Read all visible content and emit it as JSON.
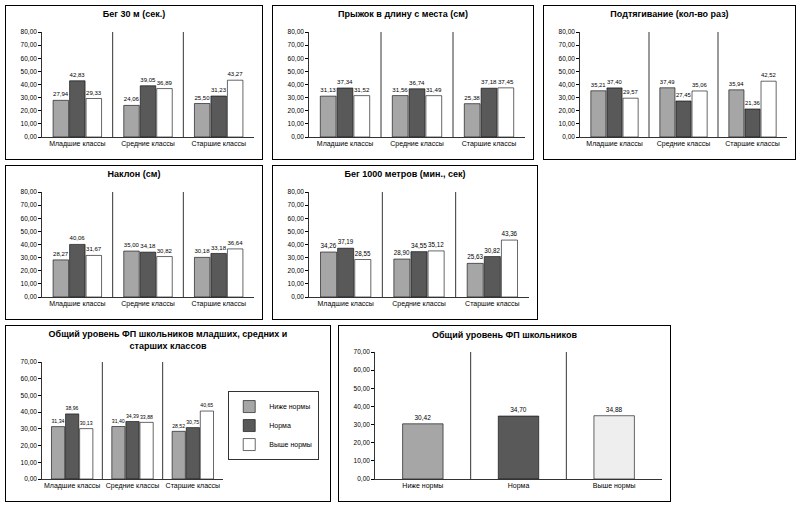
{
  "chart_data": [
    {
      "type": "bar",
      "title": "Бег 30 м (сек.)",
      "categories": [
        "Младшие классы",
        "Средние классы",
        "Старшие классы"
      ],
      "series": [
        {
          "color": "#a6a6a6",
          "values": [
            27.94,
            24.06,
            25.5
          ],
          "value_labels": [
            "27,94",
            "24,06",
            "25,50"
          ]
        },
        {
          "color": "#595959",
          "values": [
            42.83,
            39.05,
            31.23
          ],
          "value_labels": [
            "42,83",
            "39,05",
            "31,23"
          ]
        },
        {
          "color": "#ffffff",
          "values": [
            29.33,
            36.89,
            43.27
          ],
          "value_labels": [
            "29,33",
            "36,89",
            "43,27"
          ]
        }
      ],
      "ylim": [
        0,
        80
      ],
      "yticks": [
        {
          "value": 0,
          "label": "0,00"
        },
        {
          "value": 10,
          "label": "10,00"
        },
        {
          "value": 20,
          "label": "20,00"
        },
        {
          "value": 30,
          "label": "30,00"
        },
        {
          "value": 40,
          "label": "40,00"
        },
        {
          "value": 50,
          "label": "50,00"
        },
        {
          "value": 60,
          "label": "60,00"
        },
        {
          "value": 70,
          "label": "70,00"
        },
        {
          "value": 80,
          "label": "80,00"
        }
      ],
      "data_labels": true,
      "grid": false
    },
    {
      "type": "bar",
      "title": "Прыжок в длину с места (см)",
      "categories": [
        "Младшие классы",
        "Средние классы",
        "Старшие классы"
      ],
      "series": [
        {
          "color": "#a6a6a6",
          "values": [
            31.13,
            31.56,
            25.38
          ],
          "value_labels": [
            "31,13",
            "31,56",
            "25,38"
          ]
        },
        {
          "color": "#595959",
          "values": [
            37.34,
            36.74,
            37.18
          ],
          "value_labels": [
            "37,34",
            "36,74",
            "37,18"
          ]
        },
        {
          "color": "#ffffff",
          "values": [
            31.52,
            31.49,
            37.45
          ],
          "value_labels": [
            "31,52",
            "31,49",
            "37,45"
          ]
        }
      ],
      "ylim": [
        0,
        80
      ],
      "yticks": [
        {
          "value": 0,
          "label": "0,00"
        },
        {
          "value": 10,
          "label": "10,00"
        },
        {
          "value": 20,
          "label": "20,00"
        },
        {
          "value": 30,
          "label": "30,00"
        },
        {
          "value": 40,
          "label": "40,00"
        },
        {
          "value": 50,
          "label": "50,00"
        },
        {
          "value": 60,
          "label": "60,00"
        },
        {
          "value": 70,
          "label": "70,00"
        },
        {
          "value": 80,
          "label": "80,00"
        }
      ],
      "data_labels": true,
      "grid": false
    },
    {
      "type": "bar",
      "title": "Подтягивание (кол-во раз)",
      "categories": [
        "Младшие классы",
        "Средние классы",
        "Старшие классы"
      ],
      "series": [
        {
          "color": "#a6a6a6",
          "values": [
            35.21,
            37.49,
            35.94
          ],
          "value_labels": [
            "35,21",
            "37,49",
            "35,94"
          ]
        },
        {
          "color": "#595959",
          "values": [
            37.4,
            27.45,
            21.36
          ],
          "value_labels": [
            "37,40",
            "27,45",
            "21,36"
          ]
        },
        {
          "color": "#ffffff",
          "values": [
            29.57,
            35.06,
            42.52
          ],
          "value_labels": [
            "29,57",
            "35,06",
            "42,52"
          ]
        }
      ],
      "ylim": [
        0,
        80
      ],
      "yticks": [
        {
          "value": 0,
          "label": "0,00"
        },
        {
          "value": 10,
          "label": "10,00"
        },
        {
          "value": 20,
          "label": "20,00"
        },
        {
          "value": 30,
          "label": "30,00"
        },
        {
          "value": 40,
          "label": "40,00"
        },
        {
          "value": 50,
          "label": "50,00"
        },
        {
          "value": 60,
          "label": "60,00"
        },
        {
          "value": 70,
          "label": "70,00"
        },
        {
          "value": 80,
          "label": "80,00"
        }
      ],
      "data_labels": true,
      "grid": false
    },
    {
      "type": "bar",
      "title": "Наклон (см)",
      "categories": [
        "Младшие классы",
        "Средние классы",
        "Старшие классы"
      ],
      "series": [
        {
          "color": "#a6a6a6",
          "values": [
            28.27,
            35.0,
            30.18
          ],
          "value_labels": [
            "28,27",
            "35,00",
            "30,18"
          ]
        },
        {
          "color": "#595959",
          "values": [
            40.06,
            34.18,
            33.18
          ],
          "value_labels": [
            "40,06",
            "34,18",
            "33,18"
          ]
        },
        {
          "color": "#ffffff",
          "values": [
            31.67,
            30.82,
            36.64
          ],
          "value_labels": [
            "31,67",
            "30,82",
            "36,64"
          ]
        }
      ],
      "ylim": [
        0,
        80
      ],
      "yticks": [
        {
          "value": 0,
          "label": "0,00"
        },
        {
          "value": 10,
          "label": "10,00"
        },
        {
          "value": 20,
          "label": "20,00"
        },
        {
          "value": 30,
          "label": "30,00"
        },
        {
          "value": 40,
          "label": "40,00"
        },
        {
          "value": 50,
          "label": "50,00"
        },
        {
          "value": 60,
          "label": "60,00"
        },
        {
          "value": 70,
          "label": "70,00"
        },
        {
          "value": 80,
          "label": "80,00"
        }
      ],
      "data_labels": true,
      "grid": false
    },
    {
      "type": "bar",
      "title": "Бег 1000 метров (мин., сек)",
      "categories": [
        "Младшие классы",
        "Средние классы",
        "Старшие классы"
      ],
      "series": [
        {
          "color": "#a6a6a6",
          "values": [
            34.26,
            28.9,
            25.63
          ],
          "value_labels": [
            "34,26",
            "28,90",
            "25,63"
          ]
        },
        {
          "color": "#595959",
          "values": [
            37.19,
            34.55,
            30.82
          ],
          "value_labels": [
            "37,19",
            "34,55",
            "30,82"
          ]
        },
        {
          "color": "#ffffff",
          "values": [
            28.55,
            35.12,
            43.36
          ],
          "value_labels": [
            "28,55",
            "35,12",
            "43,36"
          ]
        }
      ],
      "ylim": [
        0,
        80
      ],
      "yticks": [
        {
          "value": 0,
          "label": "0,00"
        },
        {
          "value": 10,
          "label": "10,00"
        },
        {
          "value": 20,
          "label": "20,00"
        },
        {
          "value": 30,
          "label": "30,00"
        },
        {
          "value": 40,
          "label": "40,00"
        },
        {
          "value": 50,
          "label": "50,00"
        },
        {
          "value": 60,
          "label": "60,00"
        },
        {
          "value": 70,
          "label": "70,00"
        },
        {
          "value": 80,
          "label": "80,00"
        }
      ],
      "data_labels": true,
      "grid": false
    },
    {
      "type": "bar",
      "title": "Общий уровень ФП школьников младших, средних и\nстарших классов",
      "categories": [
        "Младшие классы",
        "Средние классы",
        "Старшие классы"
      ],
      "series": [
        {
          "name": "Ниже нормы",
          "color": "#a6a6a6",
          "values": [
            31.34,
            31.4,
            28.52
          ],
          "value_labels": [
            "31,34",
            "31,40",
            "28,52"
          ]
        },
        {
          "name": "Норма",
          "color": "#595959",
          "values": [
            38.96,
            34.39,
            30.75
          ],
          "value_labels": [
            "38,96",
            "34,39",
            "30,75"
          ]
        },
        {
          "name": "Выше нормы",
          "color": "#ffffff",
          "values": [
            30.13,
            33.88,
            40.65
          ],
          "value_labels": [
            "30,13",
            "33,88",
            "40,65"
          ]
        }
      ],
      "ylim": [
        0,
        70
      ],
      "yticks": [
        {
          "value": 0,
          "label": "0,00"
        },
        {
          "value": 10,
          "label": "10,00"
        },
        {
          "value": 20,
          "label": "20,00"
        },
        {
          "value": 30,
          "label": "30,00"
        },
        {
          "value": 40,
          "label": "40,00"
        },
        {
          "value": 50,
          "label": "50,00"
        },
        {
          "value": 60,
          "label": "60,00"
        },
        {
          "value": 70,
          "label": "70,00"
        }
      ],
      "legend": "right",
      "data_labels": true,
      "grid": false
    },
    {
      "type": "bar",
      "title": "Общий уровень ФП школьников",
      "categories": [
        "Ниже нормы",
        "Норма",
        "Выше нормы"
      ],
      "values": [
        30.42,
        34.7,
        34.88
      ],
      "value_labels": [
        "30,42",
        "34,70",
        "34,88"
      ],
      "colors": [
        "#a6a6a6",
        "#595959",
        "#eeeeee"
      ],
      "ylim": [
        0,
        70
      ],
      "yticks": [
        {
          "value": 0,
          "label": "0,00"
        },
        {
          "value": 10,
          "label": "10,00"
        },
        {
          "value": 20,
          "label": "20,00"
        },
        {
          "value": 30,
          "label": "30,00"
        },
        {
          "value": 40,
          "label": "40,00"
        },
        {
          "value": 50,
          "label": "50,00"
        },
        {
          "value": 60,
          "label": "60,00"
        },
        {
          "value": 70,
          "label": "70,00"
        }
      ],
      "data_labels": true,
      "grid": false
    }
  ]
}
